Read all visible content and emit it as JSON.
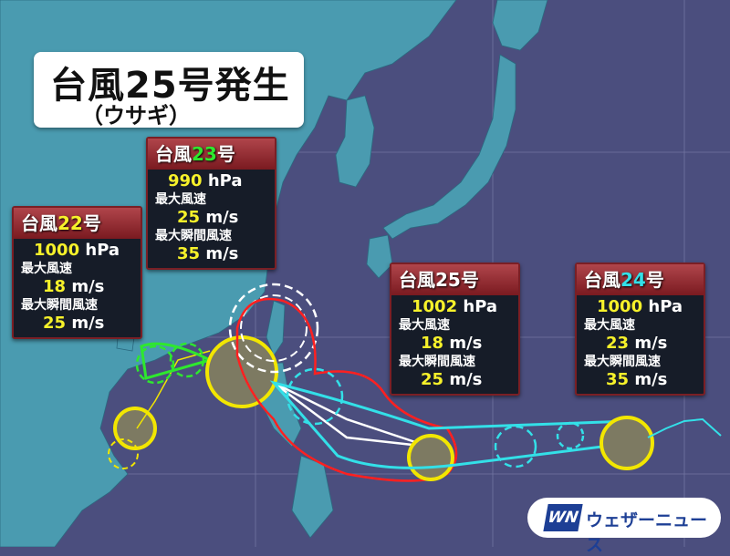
{
  "title": {
    "main": "台風25号発生",
    "sub": "（ウサギ）"
  },
  "colors": {
    "ocean": "#4b4e7e",
    "land": "#4a9bb0",
    "typhoon23": "#2ee82e",
    "typhoon24": "#33e0e8",
    "value": "#f6f12a",
    "header": "#9a2e35",
    "warning_circle": "#ff2020",
    "storm_area": "#f2e600"
  },
  "labels": {
    "pressure_unit": "hPa",
    "speed_unit": "m/s",
    "max_wind": "最大風速",
    "max_gust": "最大瞬間風速"
  },
  "typhoons": [
    {
      "prefix": "台風",
      "number": "22",
      "suffix": "号",
      "pressure": "1000",
      "max_wind": "18",
      "max_gust": "25",
      "number_color": "#f6f12a"
    },
    {
      "prefix": "台風",
      "number": "23",
      "suffix": "号",
      "pressure": "990",
      "max_wind": "25",
      "max_gust": "35",
      "number_color": "#2ee82e"
    },
    {
      "prefix": "台風",
      "number": "25",
      "suffix": "号",
      "pressure": "1002",
      "max_wind": "18",
      "max_gust": "25",
      "number_color": "#ffffff"
    },
    {
      "prefix": "台風",
      "number": "24",
      "suffix": "号",
      "pressure": "1000",
      "max_wind": "23",
      "max_gust": "35",
      "number_color": "#33e0e8"
    }
  ],
  "logo": {
    "mark": "WN",
    "text": "ウェザーニュース"
  }
}
